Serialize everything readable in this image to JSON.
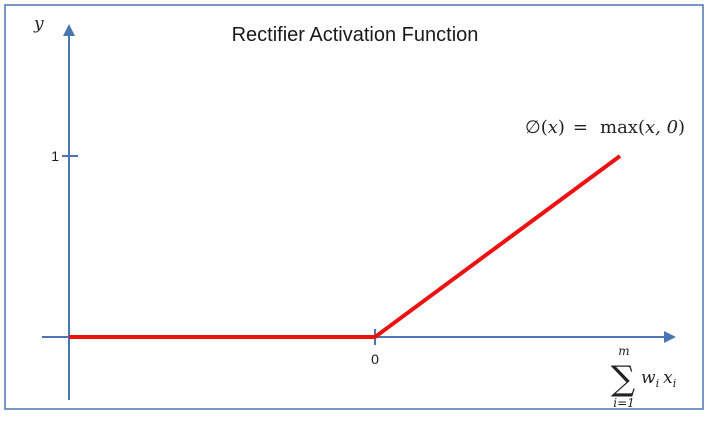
{
  "title": "Rectifier Activation Function",
  "colors": {
    "axis": "#4a77b3",
    "line": "#ee1111",
    "border": "#4a77b3",
    "background": "#ffffff"
  },
  "chart_data": {
    "type": "line",
    "title": "Rectifier Activation Function",
    "ylabel": "y",
    "ytick_labels": [
      "1"
    ],
    "xtick_labels": [
      "0"
    ],
    "grid": false,
    "series": [
      {
        "x": [
          -1.0,
          0.0,
          0.8
        ],
        "y": [
          0.0,
          0.0,
          1.0
        ]
      }
    ]
  },
  "formula": {
    "phi": "∅",
    "x_var": "x",
    "equals": "=",
    "max": "max",
    "args": "x, 0"
  },
  "xlabel": {
    "sum_symbol": "∑",
    "upper": "m",
    "lower": "i=1",
    "w": "w",
    "w_sub": "i",
    "x": "x",
    "x_sub": "i"
  }
}
